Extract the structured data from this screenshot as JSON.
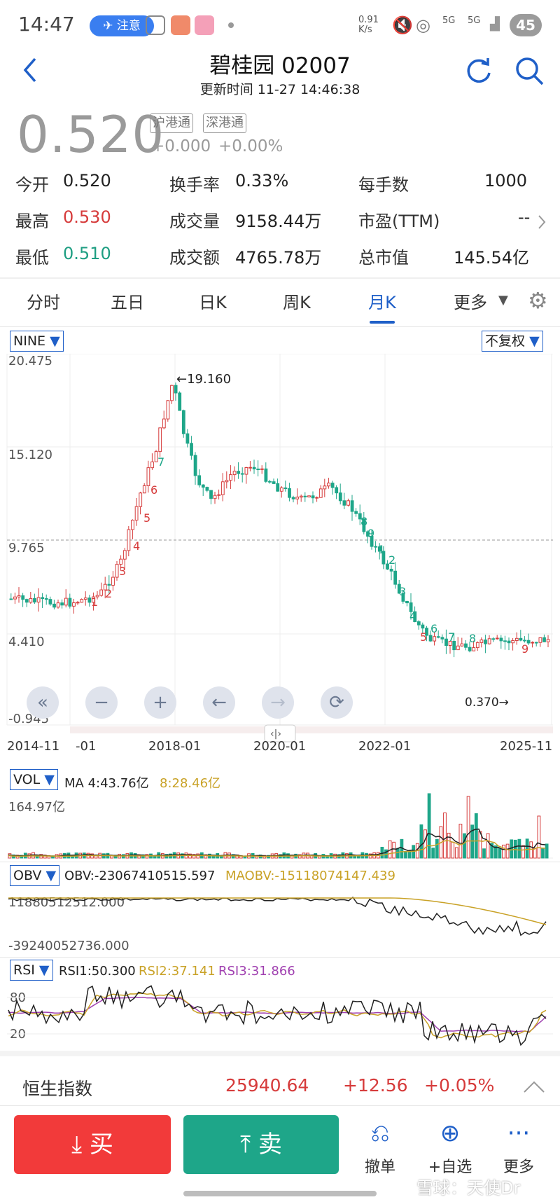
{
  "status_bar": {
    "time": "14:47",
    "notice": "注意",
    "net_speed": "0.91 K/s",
    "signal1": "5G",
    "signal2": "5G",
    "battery": "45"
  },
  "header": {
    "title": "碧桂园 02007",
    "updated": "更新时间 11-27 14:46:38",
    "back_icon": "chevron-left-icon",
    "refresh_icon": "refresh-icon",
    "search_icon": "search-icon"
  },
  "quote": {
    "price": "0.520",
    "badges": [
      "沪港通",
      "深港通"
    ],
    "change": "+0.000",
    "change_pct": "+0.00%",
    "rows": [
      [
        {
          "label": "今开",
          "value": "0.520",
          "color": "normal"
        },
        {
          "label": "换手率",
          "value": "0.33%",
          "color": "normal"
        },
        {
          "label": "每手数",
          "value": "1000",
          "color": "normal"
        }
      ],
      [
        {
          "label": "最高",
          "value": "0.530",
          "color": "red"
        },
        {
          "label": "成交量",
          "value": "9158.44万",
          "color": "normal"
        },
        {
          "label": "市盈(TTM)",
          "value": "--",
          "color": "normal"
        }
      ],
      [
        {
          "label": "最低",
          "value": "0.510",
          "color": "green"
        },
        {
          "label": "成交额",
          "value": "4765.78万",
          "color": "normal"
        },
        {
          "label": "总市值",
          "value": "145.54亿",
          "color": "normal"
        }
      ]
    ]
  },
  "tabs": [
    "分时",
    "五日",
    "日K",
    "周K",
    "月K",
    "更多"
  ],
  "active_tab": "月K",
  "chart": {
    "indicator_select": "NINE",
    "adjust_select": "不复权",
    "y_labels": [
      "20.475",
      "15.120",
      "9.765",
      "4.410",
      "-0.945"
    ],
    "max_label": "←19.160",
    "min_label": "0.370→",
    "x_labels": [
      "2014-11",
      "-01",
      "2018-01",
      "2020-01",
      "2022-01",
      "2025-11"
    ],
    "controls": [
      "«",
      "−",
      "+",
      "←",
      "→",
      "⟳"
    ],
    "colors": {
      "up": "#d63b3b",
      "down": "#1ea689",
      "ma_black": "#222222",
      "ma_gold": "#c9a227",
      "ma_purple": "#a040b0"
    }
  },
  "vol_panel": {
    "select": "VOL",
    "ma4": "MA 4:43.76亿",
    "ma8": "8:28.46亿",
    "max": "164.97亿"
  },
  "obv_panel": {
    "select": "OBV",
    "obv": "OBV:-23067410515.597",
    "maobv": "MAOBV:-15118074147.439",
    "top": "11880512512.000",
    "bottom": "-39240052736.000"
  },
  "rsi_panel": {
    "select": "RSI",
    "rsi1": "RSI1:50.300",
    "rsi2": "RSI2:37.141",
    "rsi3": "RSI3:31.866",
    "top": "80",
    "bottom": "20"
  },
  "index_bar": {
    "name": "恒生指数",
    "value": "25940.64",
    "change": "+12.56",
    "pct": "+0.05%"
  },
  "actions": {
    "buy": "买",
    "sell": "卖",
    "cancel": "撤单",
    "watch": "+自选",
    "more": "更多"
  },
  "watermark": "雪球：天使Dr"
}
